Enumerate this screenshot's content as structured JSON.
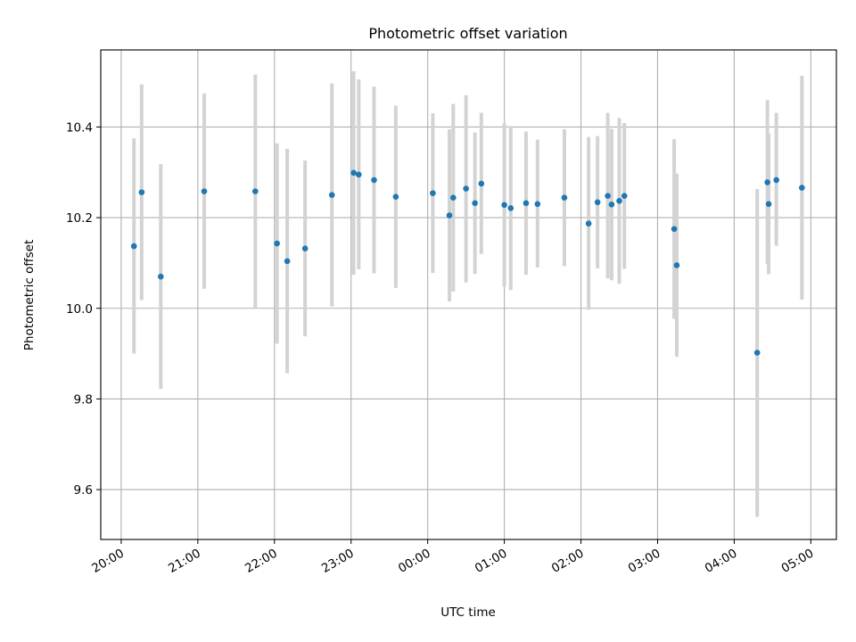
{
  "chart_data": {
    "type": "scatter",
    "title": "Photometric offset variation",
    "xlabel": "UTC time",
    "ylabel": "Photometric offset",
    "x_axis_type": "time",
    "xlim": [
      "19:44",
      "05:20"
    ],
    "ylim": [
      9.49,
      10.57
    ],
    "x_ticks": [
      "20:00",
      "21:00",
      "22:00",
      "23:00",
      "00:00",
      "01:00",
      "02:00",
      "03:00",
      "04:00",
      "05:00"
    ],
    "y_ticks": [
      "9.6",
      "9.8",
      "10.0",
      "10.2",
      "10.4"
    ],
    "grid": true,
    "colors": {
      "point": "#1f77b4",
      "error_bar": "#d3d3d3",
      "grid": "#b0b0b0"
    },
    "series": [
      {
        "points": [
          {
            "x": "20:10",
            "y": 10.137,
            "lo": 9.9,
            "hi": 10.375
          },
          {
            "x": "20:16",
            "y": 10.256,
            "lo": 10.018,
            "hi": 10.494
          },
          {
            "x": "20:31",
            "y": 10.07,
            "lo": 9.822,
            "hi": 10.318
          },
          {
            "x": "21:05",
            "y": 10.258,
            "lo": 10.043,
            "hi": 10.474
          },
          {
            "x": "21:45",
            "y": 10.258,
            "lo": 10.0,
            "hi": 10.516
          },
          {
            "x": "22:02",
            "y": 10.143,
            "lo": 9.922,
            "hi": 10.364
          },
          {
            "x": "22:10",
            "y": 10.104,
            "lo": 9.857,
            "hi": 10.352
          },
          {
            "x": "22:24",
            "y": 10.132,
            "lo": 9.938,
            "hi": 10.326
          },
          {
            "x": "22:45",
            "y": 10.25,
            "lo": 10.004,
            "hi": 10.496
          },
          {
            "x": "23:02",
            "y": 10.299,
            "lo": 10.074,
            "hi": 10.523
          },
          {
            "x": "23:06",
            "y": 10.295,
            "lo": 10.086,
            "hi": 10.505
          },
          {
            "x": "23:18",
            "y": 10.283,
            "lo": 10.077,
            "hi": 10.489
          },
          {
            "x": "23:35",
            "y": 10.246,
            "lo": 10.045,
            "hi": 10.447
          },
          {
            "x": "00:04",
            "y": 10.254,
            "lo": 10.078,
            "hi": 10.43
          },
          {
            "x": "00:17",
            "y": 10.205,
            "lo": 10.015,
            "hi": 10.395
          },
          {
            "x": "00:20",
            "y": 10.244,
            "lo": 10.037,
            "hi": 10.451
          },
          {
            "x": "00:30",
            "y": 10.264,
            "lo": 10.057,
            "hi": 10.47
          },
          {
            "x": "00:37",
            "y": 10.232,
            "lo": 10.076,
            "hi": 10.388
          },
          {
            "x": "00:42",
            "y": 10.275,
            "lo": 10.12,
            "hi": 10.431
          },
          {
            "x": "01:00",
            "y": 10.228,
            "lo": 10.048,
            "hi": 10.408
          },
          {
            "x": "01:05",
            "y": 10.221,
            "lo": 10.04,
            "hi": 10.402
          },
          {
            "x": "01:17",
            "y": 10.232,
            "lo": 10.074,
            "hi": 10.39
          },
          {
            "x": "01:26",
            "y": 10.23,
            "lo": 10.09,
            "hi": 10.372
          },
          {
            "x": "01:47",
            "y": 10.244,
            "lo": 10.093,
            "hi": 10.395
          },
          {
            "x": "02:06",
            "y": 10.187,
            "lo": 9.997,
            "hi": 10.378
          },
          {
            "x": "02:13",
            "y": 10.234,
            "lo": 10.088,
            "hi": 10.38
          },
          {
            "x": "02:21",
            "y": 10.248,
            "lo": 10.066,
            "hi": 10.431
          },
          {
            "x": "02:24",
            "y": 10.229,
            "lo": 10.062,
            "hi": 10.396
          },
          {
            "x": "02:30",
            "y": 10.237,
            "lo": 10.054,
            "hi": 10.42
          },
          {
            "x": "02:34",
            "y": 10.248,
            "lo": 10.087,
            "hi": 10.409
          },
          {
            "x": "03:13",
            "y": 10.175,
            "lo": 9.977,
            "hi": 10.373
          },
          {
            "x": "03:15",
            "y": 10.095,
            "lo": 9.893,
            "hi": 10.297
          },
          {
            "x": "04:18",
            "y": 9.902,
            "lo": 9.54,
            "hi": 10.263
          },
          {
            "x": "04:26",
            "y": 10.278,
            "lo": 10.098,
            "hi": 10.459
          },
          {
            "x": "04:27",
            "y": 10.23,
            "lo": 10.075,
            "hi": 10.385
          },
          {
            "x": "04:33",
            "y": 10.283,
            "lo": 10.138,
            "hi": 10.431
          },
          {
            "x": "04:53",
            "y": 10.266,
            "lo": 10.019,
            "hi": 10.513
          }
        ]
      }
    ]
  }
}
